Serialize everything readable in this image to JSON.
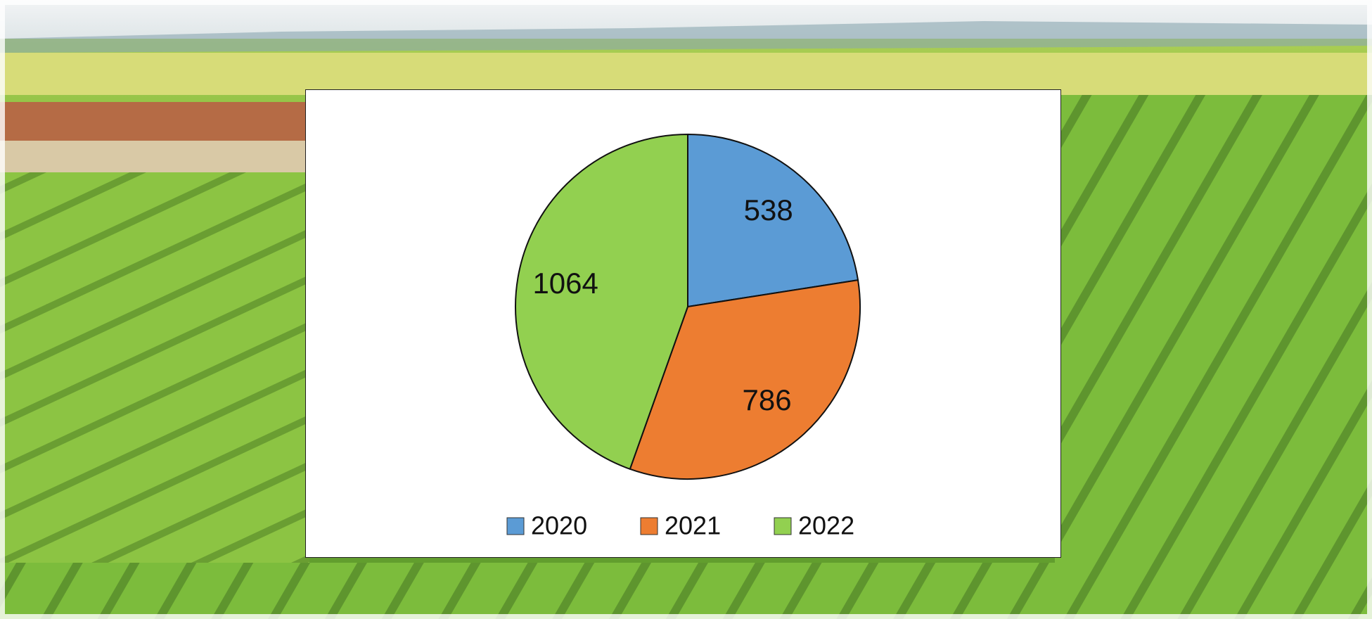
{
  "chart_data": {
    "type": "pie",
    "categories": [
      "2020",
      "2021",
      "2022"
    ],
    "values": [
      538,
      786,
      1064
    ],
    "colors": [
      "#5b9bd5",
      "#ed7d31",
      "#92d050"
    ],
    "legend": "bottom"
  }
}
